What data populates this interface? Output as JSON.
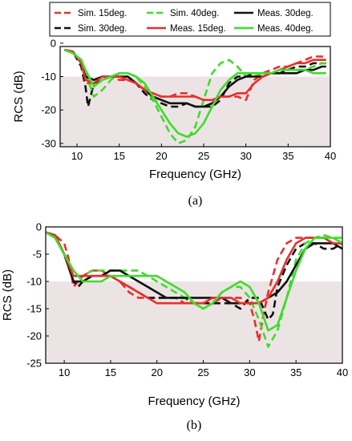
{
  "chart_data": [
    {
      "type": "line",
      "caption": "(a)",
      "xlabel": "Frequency (GHz)",
      "ylabel": "RCS (dB)",
      "xlim": [
        8,
        40
      ],
      "ylim": [
        -31,
        -1
      ],
      "xticks": [
        "10",
        "15",
        "20",
        "25",
        "30",
        "35",
        "40"
      ],
      "yticks": [
        "0",
        "-10",
        "-20",
        "-30"
      ],
      "shaded_region": {
        "y_from": -31,
        "y_to": -10,
        "color": "#ece4e4"
      },
      "legend_position": "top",
      "series": [
        {
          "name": "Sim. 15deg.",
          "color": "#e8302d",
          "dash": "dashed",
          "x": [
            8.5,
            9.5,
            10.5,
            11,
            12,
            13,
            14,
            15,
            16,
            17,
            18,
            19,
            20,
            21,
            22,
            23,
            24,
            25,
            26,
            27,
            28,
            29,
            30,
            31,
            32,
            33,
            34,
            35,
            36,
            37,
            38,
            39,
            39.5
          ],
          "y": [
            -2,
            -2.5,
            -6,
            -12,
            -12,
            -10,
            -10,
            -11,
            -11,
            -12,
            -14,
            -15,
            -16,
            -16,
            -15,
            -15,
            -16,
            -17,
            -17,
            -16,
            -16,
            -16,
            -17,
            -11,
            -9,
            -8,
            -7,
            -7,
            -6,
            -5,
            -4,
            -4,
            -4
          ]
        },
        {
          "name": "Sim. 30deg.",
          "color": "#111111",
          "dash": "dashed",
          "x": [
            8.5,
            9.5,
            10.5,
            11,
            11.3,
            11.7,
            12,
            13,
            14,
            15,
            16,
            17,
            18,
            19,
            20,
            21,
            22,
            23,
            24,
            25,
            26,
            27,
            28,
            29,
            30,
            31,
            32,
            33,
            34,
            35,
            36,
            37,
            38,
            39,
            39.5
          ],
          "y": [
            -2,
            -2.5,
            -7,
            -13,
            -19,
            -15,
            -12,
            -11,
            -10,
            -10,
            -10,
            -12,
            -15,
            -17,
            -18,
            -19,
            -19,
            -18,
            -19,
            -19,
            -19,
            -17,
            -12,
            -10,
            -10,
            -9,
            -9,
            -9,
            -9,
            -8,
            -7,
            -7,
            -6,
            -6,
            -6
          ]
        },
        {
          "name": "Sim. 40deg.",
          "color": "#3fdc2a",
          "dash": "dashed",
          "x": [
            8.5,
            9.5,
            10.5,
            11,
            12,
            13,
            14,
            15,
            16,
            17,
            18,
            19,
            20,
            21,
            22,
            23,
            24,
            25,
            26,
            27,
            28,
            29,
            30,
            31,
            32,
            33,
            34,
            35,
            36,
            37,
            38,
            39,
            39.5
          ],
          "y": [
            -2,
            -3,
            -5,
            -9,
            -16,
            -14,
            -11,
            -9,
            -9,
            -10,
            -13,
            -17,
            -22,
            -27,
            -30,
            -29,
            -25,
            -17,
            -9,
            -6,
            -5,
            -7,
            -10,
            -10,
            -9,
            -9,
            -8,
            -8,
            -8,
            -8,
            -7,
            -6,
            -6
          ]
        },
        {
          "name": "Meas. 30deg.",
          "color": "#111111",
          "dash": "solid",
          "x": [
            8.5,
            9.5,
            10.5,
            11,
            12,
            13,
            14,
            15,
            16,
            17,
            18,
            19,
            20,
            21,
            22,
            23,
            24,
            25,
            26,
            27,
            28,
            29,
            30,
            31,
            32,
            33,
            34,
            35,
            36,
            37,
            38,
            39,
            39.5
          ],
          "y": [
            -2,
            -2.5,
            -6,
            -10,
            -11,
            -10,
            -10,
            -10,
            -10,
            -12,
            -14,
            -16,
            -17,
            -18,
            -18,
            -18,
            -19,
            -19,
            -18,
            -16,
            -13,
            -11,
            -10,
            -10,
            -10,
            -9,
            -9,
            -9,
            -9,
            -8,
            -8,
            -7,
            -7
          ]
        },
        {
          "name": "Meas. 15deg.",
          "color": "#e8302d",
          "dash": "solid",
          "x": [
            8.5,
            9.5,
            10.5,
            11,
            12,
            13,
            14,
            15,
            16,
            17,
            18,
            19,
            20,
            21,
            22,
            23,
            24,
            25,
            26,
            27,
            28,
            29,
            30,
            31,
            32,
            33,
            34,
            35,
            36,
            37,
            38,
            39,
            39.5
          ],
          "y": [
            -2,
            -2.5,
            -6,
            -11,
            -12,
            -10,
            -10,
            -10,
            -11,
            -12,
            -14,
            -15,
            -16,
            -16,
            -16,
            -16,
            -16,
            -17,
            -17,
            -16,
            -16,
            -15,
            -15,
            -12,
            -10,
            -9,
            -8,
            -7,
            -6,
            -6,
            -5,
            -5,
            -5
          ]
        },
        {
          "name": "Meas. 40deg.",
          "color": "#3fdc2a",
          "dash": "solid",
          "x": [
            8.5,
            9.5,
            10.5,
            11,
            12,
            13,
            14,
            15,
            16,
            17,
            18,
            19,
            20,
            21,
            22,
            23,
            24,
            25,
            26,
            27,
            28,
            29,
            30,
            31,
            32,
            33,
            34,
            35,
            36,
            37,
            38,
            39,
            39.5
          ],
          "y": [
            -2,
            -3,
            -5,
            -8,
            -13,
            -11,
            -10,
            -9,
            -9,
            -10,
            -12,
            -16,
            -20,
            -24,
            -27,
            -28,
            -27,
            -24,
            -19,
            -14,
            -11,
            -9,
            -9,
            -9,
            -9,
            -9,
            -8,
            -8,
            -8,
            -8,
            -9,
            -9,
            -9
          ]
        }
      ]
    },
    {
      "type": "line",
      "caption": "(b)",
      "xlabel": "Frequency (GHz)",
      "ylabel": "RCS (dB)",
      "xlim": [
        8,
        40
      ],
      "ylim": [
        -25,
        0
      ],
      "xticks": [
        "10",
        "15",
        "20",
        "25",
        "30",
        "35",
        "40"
      ],
      "yticks": [
        "0",
        "-5",
        "-10",
        "-15",
        "-20",
        "-25"
      ],
      "shaded_region": {
        "y_from": -25,
        "y_to": -10,
        "color": "#ece4e4"
      },
      "series": [
        {
          "name": "Sim. 15deg.",
          "color": "#e8302d",
          "dash": "dashed",
          "x": [
            8,
            9,
            10,
            10.5,
            11,
            12,
            13,
            14,
            15,
            16,
            17,
            18,
            19,
            20,
            21,
            22,
            23,
            24,
            25,
            26,
            27,
            28,
            29,
            30,
            30.5,
            31,
            31.5,
            32,
            33,
            34,
            35,
            36,
            37,
            38,
            39,
            40
          ],
          "y": [
            -1,
            -1.5,
            -3,
            -6,
            -11,
            -9,
            -8,
            -8,
            -9,
            -10,
            -12,
            -13,
            -13,
            -13,
            -13,
            -13,
            -14,
            -14,
            -14,
            -14,
            -13,
            -13,
            -13,
            -14,
            -17,
            -21,
            -16,
            -12,
            -6,
            -3,
            -2,
            -2,
            -2,
            -2,
            -3,
            -3
          ]
        },
        {
          "name": "Sim. 30deg.",
          "color": "#111111",
          "dash": "dashed",
          "x": [
            8,
            9,
            10,
            11,
            11.5,
            12,
            13,
            14,
            15,
            16,
            17,
            18,
            19,
            20,
            21,
            22,
            23,
            24,
            25,
            26,
            27,
            28,
            29,
            30,
            31,
            32,
            32.5,
            33,
            34,
            35,
            36,
            37,
            38,
            39,
            40
          ],
          "y": [
            -1,
            -1.5,
            -5,
            -10,
            -11,
            -10,
            -9,
            -9,
            -9,
            -10,
            -11,
            -12,
            -13,
            -13,
            -13,
            -13,
            -13,
            -14,
            -14,
            -14,
            -14,
            -14,
            -15,
            -13,
            -13,
            -17,
            -16,
            -11,
            -7,
            -4,
            -3,
            -3,
            -4,
            -4,
            -3
          ]
        },
        {
          "name": "Sim. 40deg.",
          "color": "#3fdc2a",
          "dash": "dashed",
          "x": [
            8,
            9,
            10,
            11,
            12,
            13,
            14,
            15,
            16,
            17,
            18,
            19,
            20,
            21,
            22,
            23,
            24,
            25,
            26,
            27,
            28,
            29,
            30,
            31,
            32,
            33,
            34,
            35,
            36,
            37,
            38,
            39,
            40
          ],
          "y": [
            -1,
            -2,
            -5,
            -9,
            -9,
            -8,
            -8,
            -8,
            -8,
            -8,
            -8,
            -9,
            -10,
            -11,
            -12,
            -13,
            -14,
            -15,
            -14,
            -12,
            -11,
            -11,
            -13,
            -17,
            -22,
            -19,
            -13,
            -6,
            -3,
            -2,
            -1.5,
            -2,
            -2
          ]
        },
        {
          "name": "Meas. 30deg.",
          "color": "#111111",
          "dash": "solid",
          "x": [
            8,
            9,
            10,
            11,
            12,
            13,
            14,
            15,
            16,
            17,
            18,
            19,
            20,
            21,
            22,
            23,
            24,
            25,
            26,
            27,
            28,
            29,
            30,
            31,
            32,
            33,
            34,
            35,
            36,
            37,
            38,
            39,
            40
          ],
          "y": [
            -1,
            -1.5,
            -5,
            -10,
            -10,
            -9,
            -9,
            -8,
            -8,
            -9,
            -10,
            -11,
            -12,
            -13,
            -13,
            -13,
            -13,
            -13,
            -13,
            -13,
            -14,
            -14,
            -14,
            -14,
            -13,
            -12,
            -10,
            -7,
            -4,
            -3,
            -3,
            -3,
            -4
          ]
        },
        {
          "name": "Meas. 15deg.",
          "color": "#e8302d",
          "dash": "solid",
          "x": [
            8,
            9,
            10,
            11,
            12,
            13,
            14,
            15,
            16,
            17,
            18,
            19,
            20,
            21,
            22,
            23,
            24,
            25,
            26,
            27,
            28,
            29,
            30,
            31,
            32,
            33,
            34,
            35,
            36,
            37,
            38,
            39,
            40
          ],
          "y": [
            -1,
            -1.5,
            -5,
            -9,
            -9,
            -9,
            -9,
            -9,
            -10,
            -11,
            -12,
            -13,
            -14,
            -14,
            -14,
            -14,
            -14,
            -14,
            -13,
            -13,
            -13,
            -14,
            -14,
            -14,
            -13,
            -10,
            -6,
            -3,
            -2,
            -2,
            -2,
            -3,
            -3
          ]
        },
        {
          "name": "Meas. 40deg.",
          "color": "#3fdc2a",
          "dash": "solid",
          "x": [
            8,
            9,
            10,
            11,
            12,
            13,
            14,
            15,
            16,
            17,
            18,
            19,
            20,
            21,
            22,
            23,
            24,
            25,
            26,
            27,
            28,
            29,
            30,
            31,
            32,
            33,
            34,
            35,
            36,
            37,
            38,
            39,
            40
          ],
          "y": [
            -1,
            -2,
            -5,
            -8,
            -10,
            -10,
            -10,
            -9,
            -9,
            -9,
            -9,
            -9,
            -9,
            -10,
            -11,
            -12,
            -14,
            -15,
            -14,
            -12,
            -11,
            -10,
            -11,
            -14,
            -19,
            -18,
            -13,
            -8,
            -4,
            -2,
            -2,
            -2,
            -3
          ]
        }
      ]
    }
  ]
}
